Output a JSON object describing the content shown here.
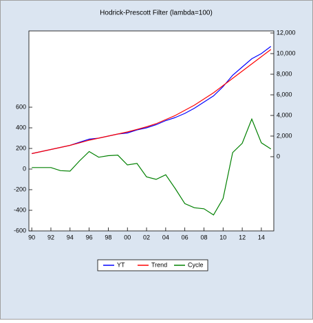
{
  "chart_data": {
    "type": "line",
    "title": "Hodrick-Prescott Filter (lambda=100)",
    "x": [
      1990,
      1991,
      1992,
      1993,
      1994,
      1995,
      1996,
      1997,
      1998,
      1999,
      2000,
      2001,
      2002,
      2003,
      2004,
      2005,
      2006,
      2007,
      2008,
      2009,
      2010,
      2011,
      2012,
      2013,
      2014,
      2015
    ],
    "xlim": [
      1989.7,
      2015.3
    ],
    "xticks": [
      {
        "value": 1990,
        "label": "90"
      },
      {
        "value": 1992,
        "label": "92"
      },
      {
        "value": 1994,
        "label": "94"
      },
      {
        "value": 1996,
        "label": "96"
      },
      {
        "value": 1998,
        "label": "98"
      },
      {
        "value": 2000,
        "label": "00"
      },
      {
        "value": 2002,
        "label": "02"
      },
      {
        "value": 2004,
        "label": "04"
      },
      {
        "value": 2006,
        "label": "06"
      },
      {
        "value": 2008,
        "label": "08"
      },
      {
        "value": 2010,
        "label": "10"
      },
      {
        "value": 2012,
        "label": "12"
      },
      {
        "value": 2014,
        "label": "14"
      }
    ],
    "ylim": [
      -600,
      1340
    ],
    "yticks": [
      -600,
      -400,
      -200,
      0,
      200,
      400,
      600
    ],
    "y2lim": [
      -7200,
      12200
    ],
    "y2ticks": [
      0,
      {
        "value": 2000,
        "label": "2,000"
      },
      {
        "value": 4000,
        "label": "4,000"
      },
      {
        "value": 6000,
        "label": "6,000"
      },
      {
        "value": 8000,
        "label": "8,000"
      },
      {
        "value": 10000,
        "label": "10,000"
      },
      {
        "value": 12000,
        "label": "12,000"
      }
    ],
    "series": [
      {
        "name": "YT",
        "color": "#0000ff",
        "axis": "y2",
        "values": [
          300,
          500,
          700,
          900,
          1100,
          1400,
          1700,
          1800,
          2000,
          2200,
          2300,
          2600,
          2800,
          3100,
          3500,
          3800,
          4200,
          4700,
          5300,
          5900,
          6800,
          7900,
          8700,
          9500,
          10000,
          10700
        ]
      },
      {
        "name": "Trend",
        "color": "#ff0000",
        "axis": "y2",
        "values": [
          300,
          500,
          700,
          900,
          1100,
          1350,
          1600,
          1800,
          2000,
          2200,
          2400,
          2650,
          2900,
          3200,
          3600,
          4000,
          4500,
          5000,
          5600,
          6200,
          6900,
          7600,
          8300,
          9000,
          9700,
          10400
        ]
      },
      {
        "name": "Cycle",
        "color": "#008000",
        "values": [
          15,
          15,
          15,
          -15,
          -20,
          80,
          170,
          115,
          130,
          135,
          40,
          55,
          -75,
          -100,
          -55,
          -190,
          -335,
          -375,
          -385,
          -445,
          -285,
          160,
          250,
          485,
          255,
          195
        ]
      }
    ]
  }
}
